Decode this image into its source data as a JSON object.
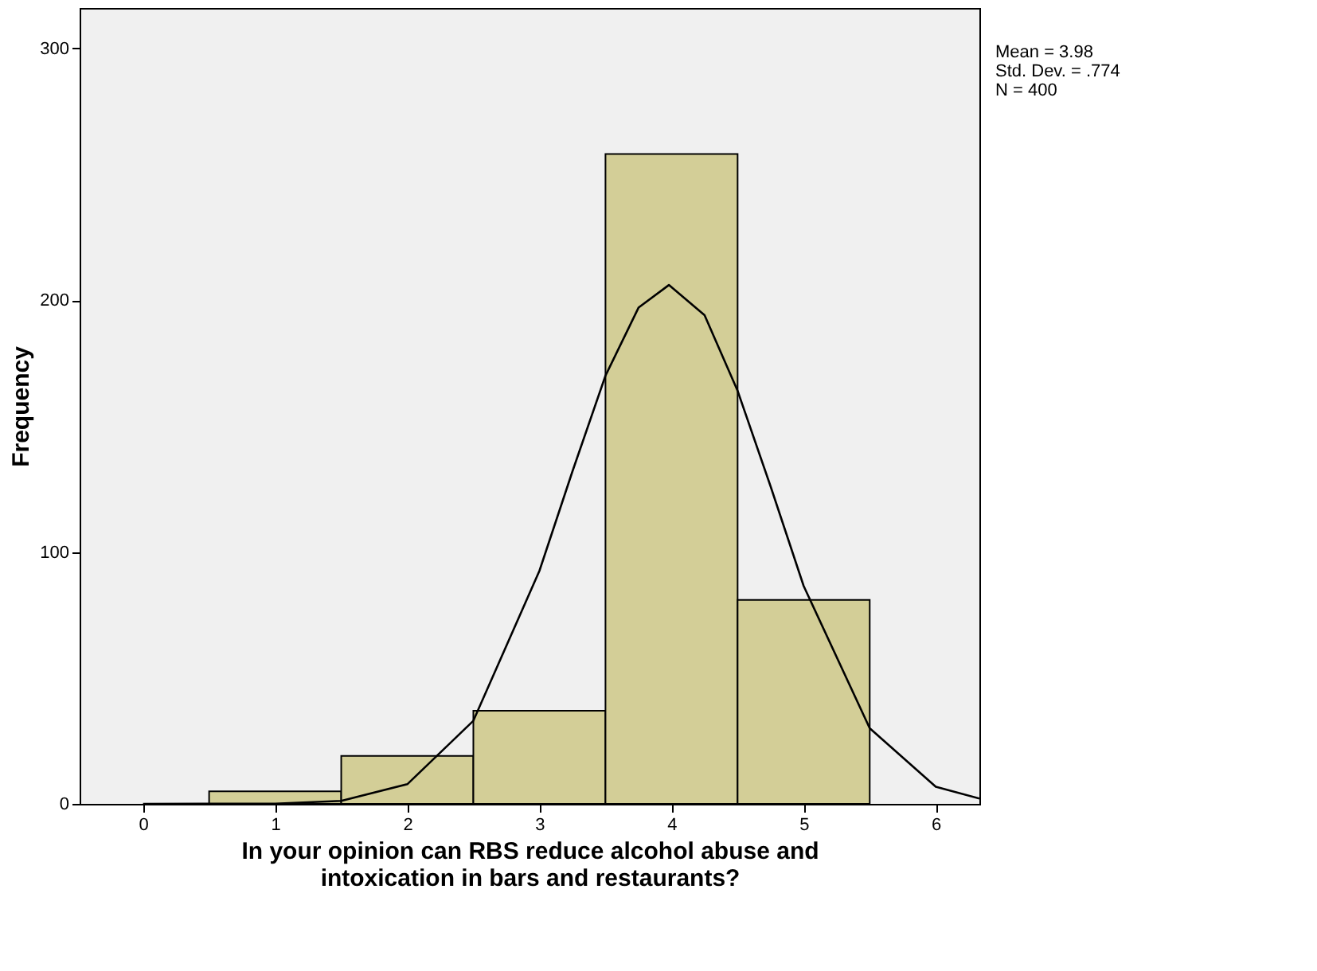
{
  "chart_data": {
    "type": "histogram",
    "xlabel": "In your opinion can RBS reduce alcohol abuse and\nintoxication in bars and restaurants?",
    "ylabel": "Frequency",
    "bins": [
      0.5,
      1.5,
      2.5,
      3.5,
      4.5,
      5.5
    ],
    "values": [
      5,
      19,
      37,
      258,
      81
    ],
    "color": "#d3ce97",
    "series": [
      {
        "type": "line",
        "color": "#000000",
        "x": [
          0,
          1,
          1.5,
          2,
          2.5,
          3,
          3.25,
          3.5,
          3.75,
          3.98,
          4.25,
          4.5,
          4.75,
          5,
          5.5,
          6,
          6.33
        ],
        "values": [
          0,
          0.1,
          1.2,
          7.8,
          33,
          92.5,
          132,
          170,
          197,
          206,
          194,
          164,
          126,
          86.5,
          30,
          6.8,
          2.1
        ]
      }
    ],
    "xlim": [
      -0.48,
      6.33
    ],
    "xticks": [
      0,
      1,
      2,
      3,
      4,
      5,
      6
    ],
    "ylim": [
      0,
      316
    ],
    "yticks": [
      0,
      100,
      200,
      300
    ],
    "grid": false,
    "annotations": [
      "Mean = 3.98",
      "Std. Dev. = .774",
      "N = 400"
    ]
  }
}
